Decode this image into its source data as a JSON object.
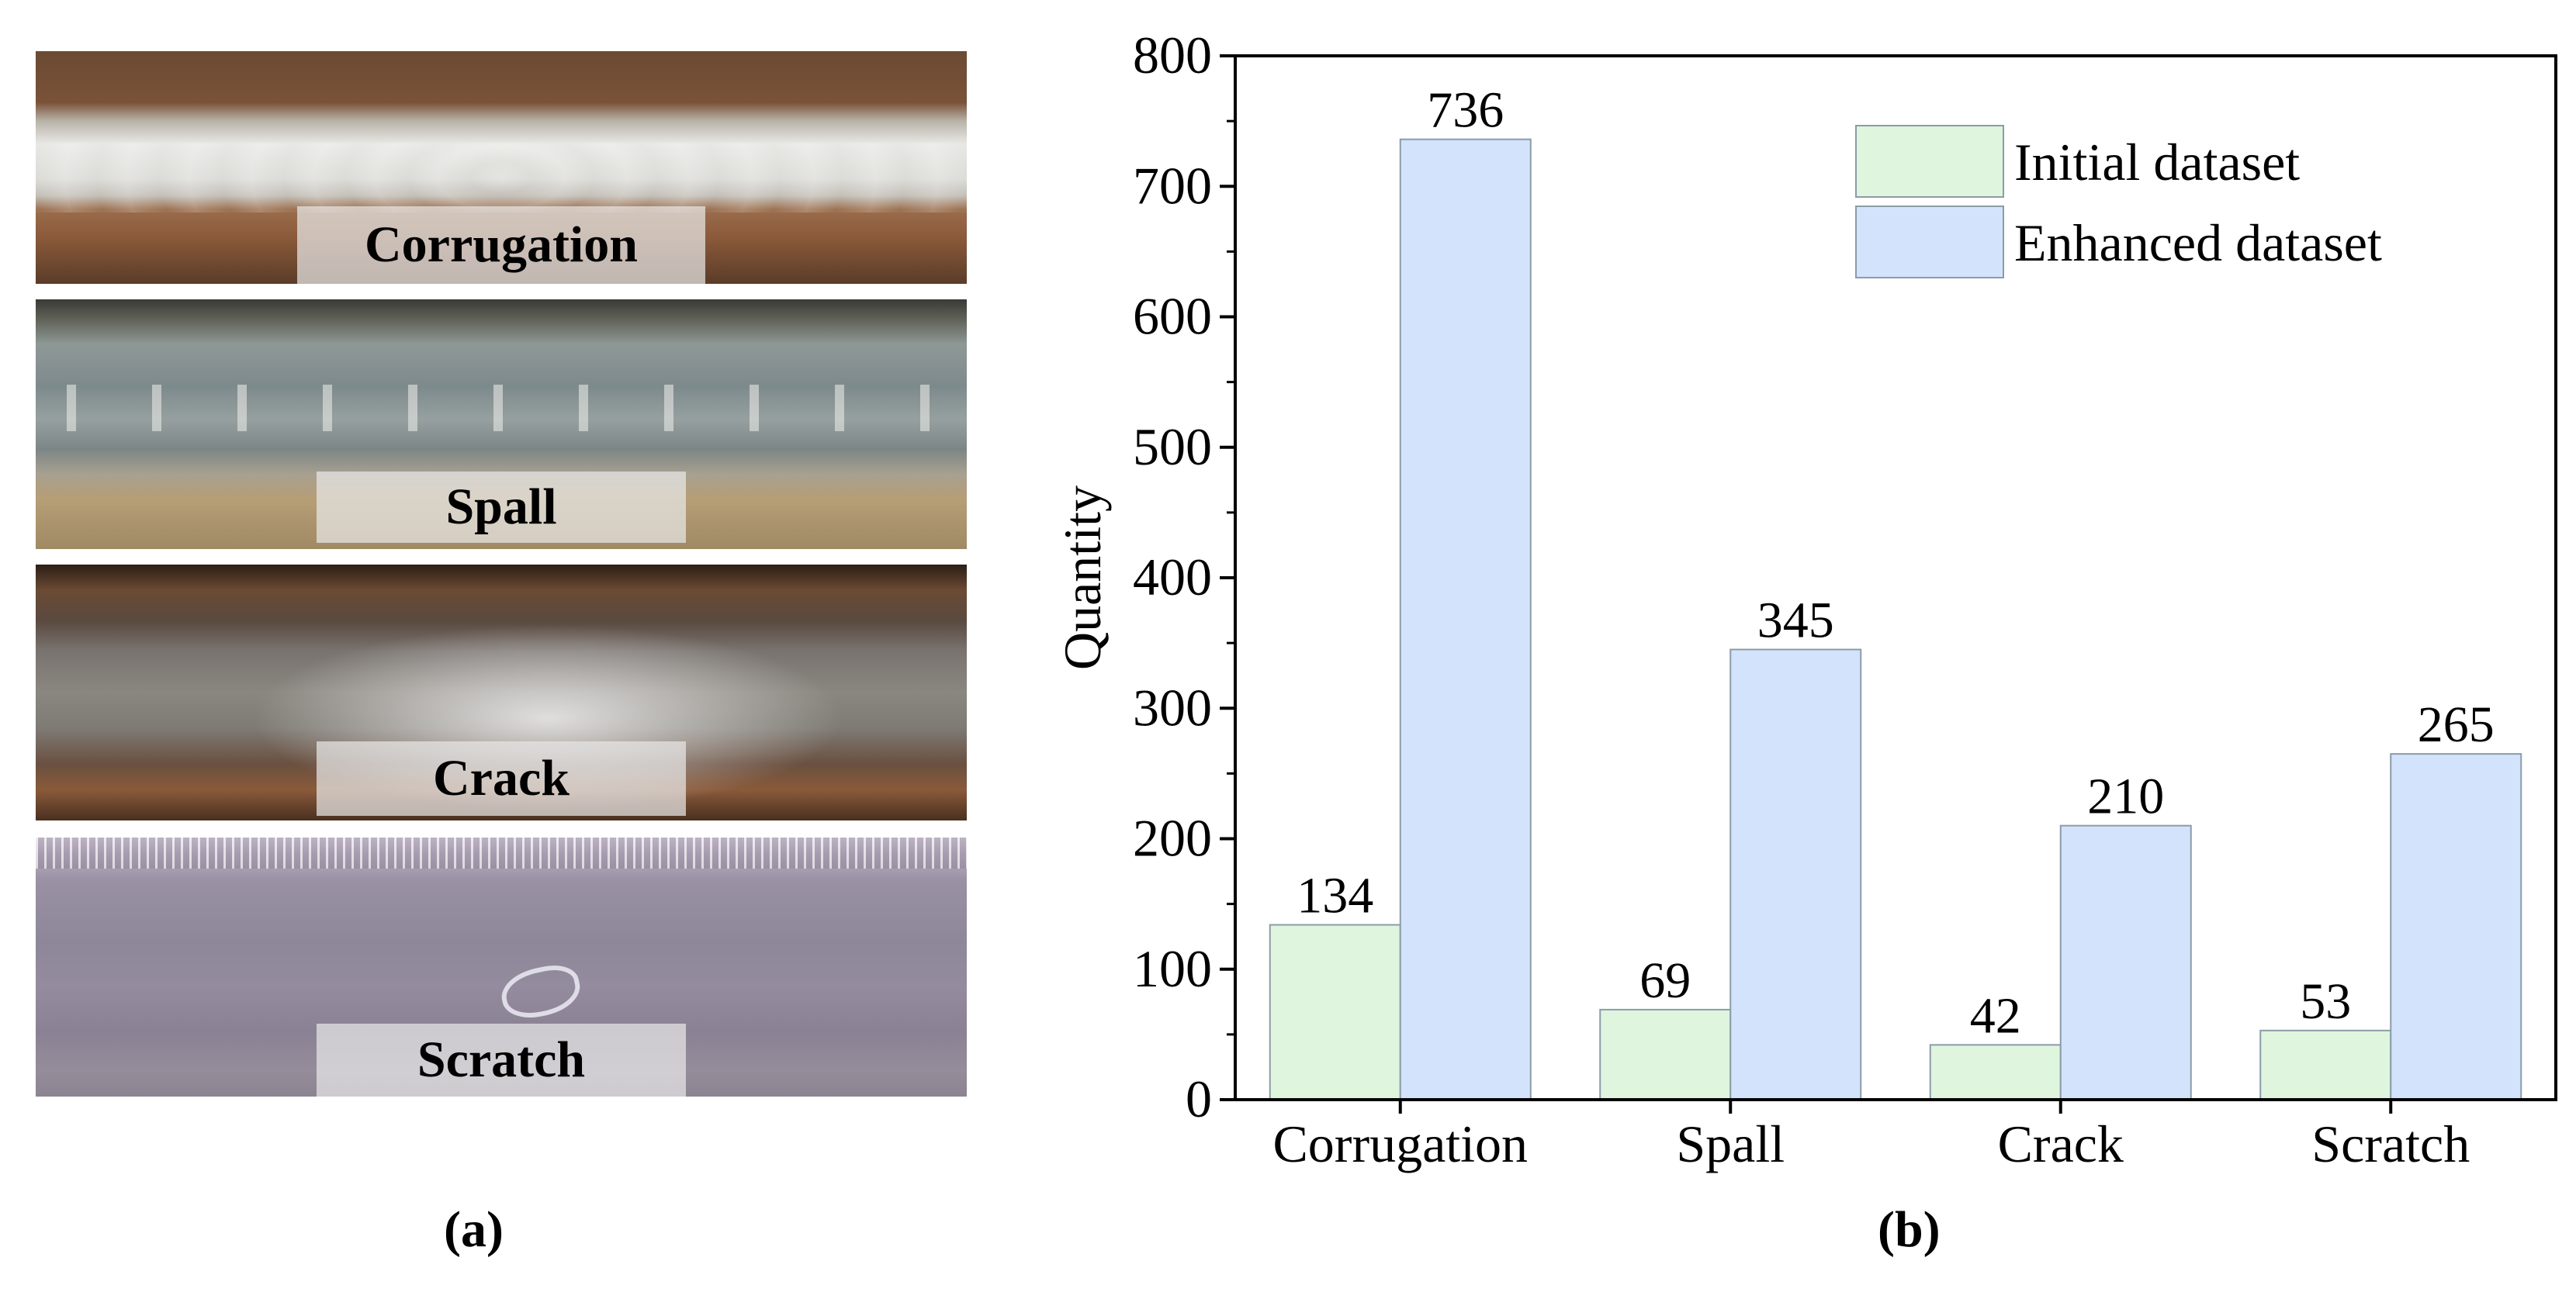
{
  "panel_a": {
    "strips": [
      {
        "label": "Corrugation"
      },
      {
        "label": "Spall"
      },
      {
        "label": "Crack"
      },
      {
        "label": "Scratch"
      }
    ],
    "panel_label": "(a)"
  },
  "panel_b": {
    "panel_label": "(b)"
  },
  "chart_data": {
    "type": "bar",
    "categories": [
      "Corrugation",
      "Spall",
      "Crack",
      "Scratch"
    ],
    "series": [
      {
        "name": "Initial dataset",
        "values": [
          134,
          69,
          42,
          53
        ],
        "color": "#dff5de"
      },
      {
        "name": "Enhanced dataset",
        "values": [
          736,
          345,
          210,
          265
        ],
        "color": "#d4e3fc"
      }
    ],
    "ylabel": "Quantity",
    "xlabel": "",
    "ylim": [
      0,
      800
    ],
    "yticks": [
      0,
      100,
      200,
      300,
      400,
      500,
      600,
      700,
      800
    ],
    "legend_position": "top-right",
    "data_labels": true,
    "grid": false,
    "edge_color": "#8a9ca8"
  }
}
